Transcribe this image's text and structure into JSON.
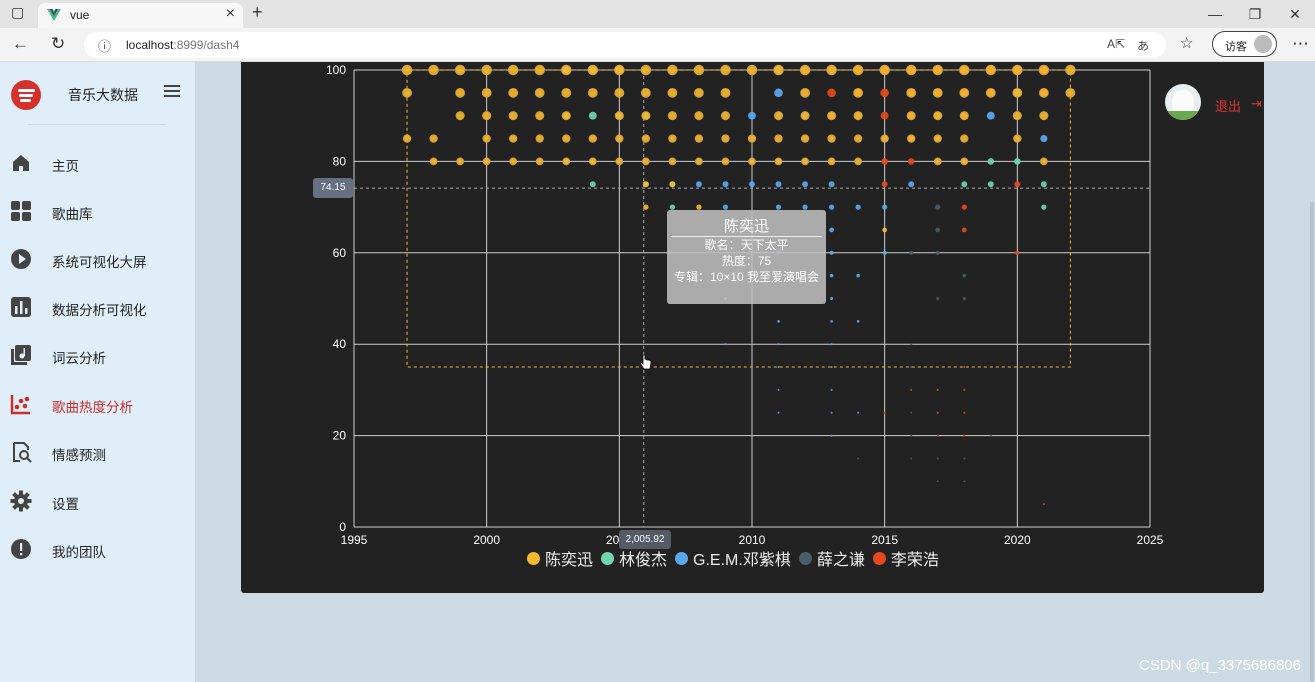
{
  "browser": {
    "tab_title": "vue",
    "url_host": "localhost",
    "url_rest": ":8999/dash4",
    "guest_label": "访客",
    "window_buttons": [
      "—",
      "❐",
      "✕"
    ]
  },
  "sidebar": {
    "app_title": "音乐大数据",
    "items": [
      {
        "label": "主页",
        "icon": "home-icon"
      },
      {
        "label": "歌曲库",
        "icon": "grid-icon"
      },
      {
        "label": "系统可视化大屏",
        "icon": "play-circle-icon"
      },
      {
        "label": "数据分析可视化",
        "icon": "bar-chart-icon"
      },
      {
        "label": "词云分析",
        "icon": "music-library-icon"
      },
      {
        "label": "歌曲热度分析",
        "icon": "scatter-chart-icon",
        "active": true
      },
      {
        "label": "情感预测",
        "icon": "search-document-icon"
      },
      {
        "label": "设置",
        "icon": "gear-icon"
      },
      {
        "label": "我的团队",
        "icon": "alert-circle-icon"
      }
    ]
  },
  "header": {
    "logout_label": "退出",
    "logout_icon": "logout-icon"
  },
  "tooltip": {
    "title": "陈奕迅",
    "song_line": "歌名：天下太平",
    "heat_line": "热度：75",
    "album_line": "专辑：10×10 我至爱演唱会"
  },
  "axis_pointer": {
    "y_value": "74.15",
    "x_value": "2,005.92"
  },
  "chart_data": {
    "type": "scatter",
    "xlim": [
      1995,
      2025
    ],
    "ylim": [
      0,
      100
    ],
    "x_ticks": [
      1995,
      2000,
      2005,
      2010,
      2015,
      2020,
      2025
    ],
    "y_ticks": [
      0,
      20,
      40,
      60,
      80,
      100
    ],
    "grid": true,
    "legend_position": "bottom",
    "series": [
      {
        "name": "陈奕迅",
        "color": "#f5b82e",
        "points": [
          [
            1997,
            100
          ],
          [
            1998,
            100
          ],
          [
            1999,
            100
          ],
          [
            2000,
            100
          ],
          [
            2001,
            100
          ],
          [
            2002,
            100
          ],
          [
            2003,
            100
          ],
          [
            2004,
            100
          ],
          [
            2005,
            100
          ],
          [
            2006,
            100
          ],
          [
            2007,
            100
          ],
          [
            2008,
            100
          ],
          [
            2009,
            100
          ],
          [
            2010,
            100
          ],
          [
            2011,
            100
          ],
          [
            2012,
            100
          ],
          [
            2013,
            100
          ],
          [
            2014,
            100
          ],
          [
            2015,
            100
          ],
          [
            2016,
            100
          ],
          [
            2017,
            100
          ],
          [
            2018,
            100
          ],
          [
            2019,
            100
          ],
          [
            2020,
            100
          ],
          [
            2021,
            100
          ],
          [
            2022,
            100
          ],
          [
            1997,
            95
          ],
          [
            1999,
            95
          ],
          [
            2000,
            95
          ],
          [
            2001,
            95
          ],
          [
            2002,
            95
          ],
          [
            2003,
            95
          ],
          [
            2004,
            95
          ],
          [
            2005,
            95
          ],
          [
            2006,
            95
          ],
          [
            2007,
            95
          ],
          [
            2008,
            95
          ],
          [
            2009,
            95
          ],
          [
            2012,
            95
          ],
          [
            2014,
            95
          ],
          [
            2016,
            95
          ],
          [
            2017,
            95
          ],
          [
            2018,
            95
          ],
          [
            2019,
            95
          ],
          [
            2020,
            95
          ],
          [
            2021,
            95
          ],
          [
            2022,
            95
          ],
          [
            1999,
            90
          ],
          [
            2000,
            90
          ],
          [
            2001,
            90
          ],
          [
            2002,
            90
          ],
          [
            2003,
            90
          ],
          [
            2005,
            90
          ],
          [
            2006,
            90
          ],
          [
            2007,
            90
          ],
          [
            2008,
            90
          ],
          [
            2009,
            90
          ],
          [
            2011,
            90
          ],
          [
            2012,
            90
          ],
          [
            2013,
            90
          ],
          [
            2014,
            90
          ],
          [
            2016,
            90
          ],
          [
            2017,
            90
          ],
          [
            2018,
            90
          ],
          [
            2020,
            90
          ],
          [
            2021,
            90
          ],
          [
            1997,
            85
          ],
          [
            1998,
            85
          ],
          [
            2000,
            85
          ],
          [
            2001,
            85
          ],
          [
            2002,
            85
          ],
          [
            2003,
            85
          ],
          [
            2004,
            85
          ],
          [
            2005,
            85
          ],
          [
            2006,
            85
          ],
          [
            2007,
            85
          ],
          [
            2008,
            85
          ],
          [
            2009,
            85
          ],
          [
            2010,
            85
          ],
          [
            2011,
            85
          ],
          [
            2012,
            85
          ],
          [
            2013,
            85
          ],
          [
            2014,
            85
          ],
          [
            2015,
            85
          ],
          [
            2016,
            85
          ],
          [
            2017,
            85
          ],
          [
            2018,
            85
          ],
          [
            2020,
            85
          ],
          [
            1998,
            80
          ],
          [
            1999,
            80
          ],
          [
            2000,
            80
          ],
          [
            2001,
            80
          ],
          [
            2002,
            80
          ],
          [
            2003,
            80
          ],
          [
            2004,
            80
          ],
          [
            2005,
            80
          ],
          [
            2006,
            80
          ],
          [
            2007,
            80
          ],
          [
            2008,
            80
          ],
          [
            2009,
            80
          ],
          [
            2010,
            80
          ],
          [
            2011,
            80
          ],
          [
            2012,
            80
          ],
          [
            2013,
            80
          ],
          [
            2014,
            80
          ],
          [
            2017,
            80
          ],
          [
            2018,
            80
          ],
          [
            2021,
            80
          ],
          [
            2006,
            75
          ],
          [
            2007,
            75
          ],
          [
            2006,
            70
          ],
          [
            2008,
            70
          ],
          [
            2015,
            65
          ],
          [
            2000,
            35
          ]
        ]
      },
      {
        "name": "林俊杰",
        "color": "#6fd6b0",
        "points": [
          [
            2003,
            100
          ],
          [
            2004,
            100
          ],
          [
            2005,
            100
          ],
          [
            2020,
            95
          ],
          [
            2003,
            90
          ],
          [
            2004,
            90
          ],
          [
            2005,
            90
          ],
          [
            2006,
            90
          ],
          [
            2003,
            80
          ],
          [
            2004,
            80
          ],
          [
            2019,
            80
          ],
          [
            2020,
            80
          ],
          [
            2004,
            75
          ],
          [
            2006,
            75
          ],
          [
            2007,
            75
          ],
          [
            2018,
            75
          ],
          [
            2019,
            75
          ],
          [
            2021,
            75
          ],
          [
            2007,
            70
          ],
          [
            2021,
            70
          ]
        ]
      },
      {
        "name": "G.E.M.邓紫棋",
        "color": "#5aa9f0",
        "points": [
          [
            2011,
            100
          ],
          [
            2011,
            95
          ],
          [
            2010,
            90
          ],
          [
            2012,
            90
          ],
          [
            2013,
            90
          ],
          [
            2019,
            90
          ],
          [
            2021,
            85
          ],
          [
            2010,
            80
          ],
          [
            2011,
            80
          ],
          [
            2012,
            80
          ],
          [
            2013,
            80
          ],
          [
            2008,
            75
          ],
          [
            2009,
            75
          ],
          [
            2010,
            75
          ],
          [
            2011,
            75
          ],
          [
            2012,
            75
          ],
          [
            2013,
            75
          ],
          [
            2016,
            75
          ],
          [
            2009,
            70
          ],
          [
            2011,
            70
          ],
          [
            2012,
            70
          ],
          [
            2013,
            70
          ],
          [
            2014,
            70
          ],
          [
            2015,
            70
          ],
          [
            2010,
            65
          ],
          [
            2013,
            65
          ],
          [
            2011,
            60
          ],
          [
            2013,
            60
          ],
          [
            2015,
            60
          ],
          [
            2011,
            55
          ],
          [
            2013,
            55
          ],
          [
            2014,
            55
          ],
          [
            2013,
            50
          ],
          [
            2009,
            50
          ],
          [
            2011,
            45
          ],
          [
            2013,
            45
          ],
          [
            2014,
            45
          ],
          [
            2009,
            40
          ],
          [
            2011,
            40
          ],
          [
            2013,
            40
          ],
          [
            2011,
            35
          ],
          [
            2013,
            35
          ],
          [
            2011,
            30
          ],
          [
            2013,
            30
          ],
          [
            2011,
            25
          ],
          [
            2013,
            25
          ],
          [
            2014,
            25
          ],
          [
            2013,
            20
          ]
        ]
      },
      {
        "name": "薛之谦",
        "color": "#4a5c66",
        "points": [
          [
            2017,
            70
          ],
          [
            2017,
            65
          ],
          [
            2016,
            60
          ],
          [
            2017,
            60
          ],
          [
            2018,
            55
          ],
          [
            2017,
            50
          ],
          [
            2018,
            50
          ],
          [
            2016,
            40
          ],
          [
            2016,
            35
          ],
          [
            2016,
            25
          ],
          [
            2017,
            25
          ],
          [
            2016,
            20
          ],
          [
            2017,
            20
          ],
          [
            2018,
            20
          ],
          [
            2019,
            20
          ],
          [
            2014,
            15
          ],
          [
            2016,
            15
          ],
          [
            2017,
            15
          ],
          [
            2018,
            15
          ],
          [
            2017,
            10
          ],
          [
            2018,
            10
          ]
        ]
      },
      {
        "name": "李荣浩",
        "color": "#e8481c",
        "points": [
          [
            2012,
            100
          ],
          [
            2013,
            100
          ],
          [
            2014,
            100
          ],
          [
            2015,
            100
          ],
          [
            2016,
            100
          ],
          [
            2017,
            100
          ],
          [
            2018,
            100
          ],
          [
            2019,
            100
          ],
          [
            2020,
            100
          ],
          [
            2021,
            100
          ],
          [
            2013,
            95
          ],
          [
            2014,
            95
          ],
          [
            2015,
            95
          ],
          [
            2016,
            95
          ],
          [
            2017,
            95
          ],
          [
            2018,
            95
          ],
          [
            2019,
            95
          ],
          [
            2021,
            95
          ],
          [
            2013,
            90
          ],
          [
            2014,
            90
          ],
          [
            2015,
            90
          ],
          [
            2016,
            90
          ],
          [
            2017,
            90
          ],
          [
            2018,
            90
          ],
          [
            2015,
            85
          ],
          [
            2016,
            85
          ],
          [
            2017,
            85
          ],
          [
            2013,
            80
          ],
          [
            2015,
            80
          ],
          [
            2016,
            80
          ],
          [
            2018,
            80
          ],
          [
            2015,
            75
          ],
          [
            2020,
            75
          ],
          [
            2018,
            70
          ],
          [
            2018,
            65
          ],
          [
            2020,
            60
          ],
          [
            2018,
            35
          ],
          [
            2016,
            30
          ],
          [
            2017,
            30
          ],
          [
            2018,
            30
          ],
          [
            2015,
            25
          ],
          [
            2017,
            25
          ],
          [
            2018,
            25
          ],
          [
            2017,
            20
          ],
          [
            2018,
            20
          ],
          [
            2021,
            5
          ]
        ]
      }
    ]
  },
  "watermark": "CSDN @q_3375686806"
}
